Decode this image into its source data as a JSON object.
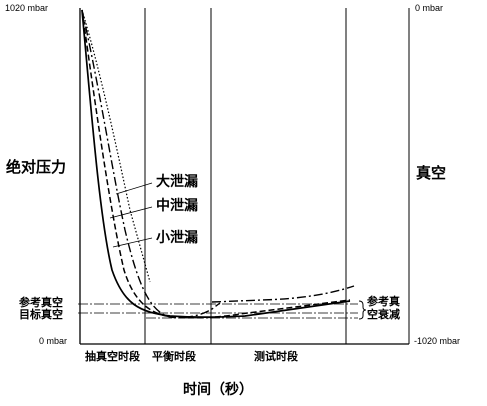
{
  "labels": {
    "left_top": "1020 mbar",
    "left_bottom": "0 mbar",
    "right_top": "0 mbar",
    "right_bottom": "-1020 mbar",
    "left_axis": "绝对压力",
    "right_axis": "真空",
    "x_axis": "时间（秒）",
    "ref_vacuum": "参考真空",
    "target_vacuum": "目标真空",
    "decay_line1": "参考真",
    "decay_line2": "空衰减"
  },
  "phases": [
    "抽真空时段",
    "平衡时段",
    "测试时段"
  ],
  "legend": [
    "大泄漏",
    "中泄漏",
    "小泄漏"
  ],
  "chart_data": {
    "type": "line",
    "title": "",
    "xlabel": "时间（秒）",
    "ylabel": "绝对压力",
    "ylabel_right": "真空",
    "ylim": [
      0,
      1020
    ],
    "ylim_right": [
      -1020,
      0
    ],
    "x_phases": [
      "抽真空时段",
      "平衡时段",
      "测试时段"
    ],
    "reference_levels": [
      {
        "name": "参考真空",
        "value": 120
      },
      {
        "name": "目标真空",
        "value": 90
      }
    ],
    "series": [
      {
        "name": "大泄漏",
        "style": "dotted"
      },
      {
        "name": "中泄漏",
        "style": "dash-dot"
      },
      {
        "name": "小泄漏",
        "style": "dashed"
      }
    ]
  }
}
